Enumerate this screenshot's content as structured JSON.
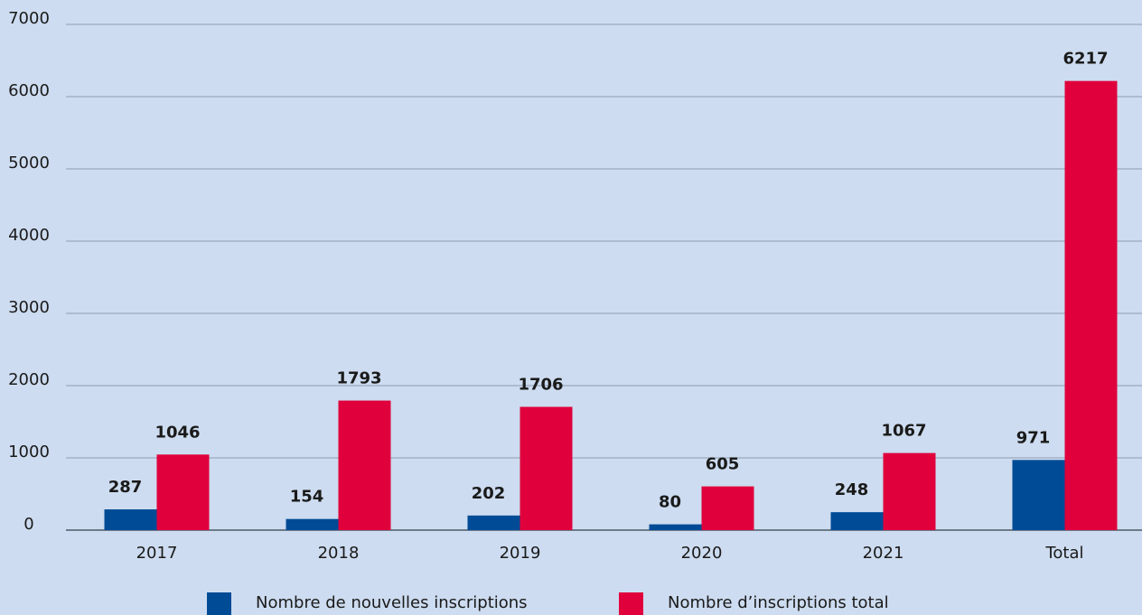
{
  "chart_data": {
    "type": "bar",
    "categories": [
      "2017",
      "2018",
      "2019",
      "2020",
      "2021",
      "Total"
    ],
    "series": [
      {
        "name": "Nombre de nouvelles inscriptions",
        "color": "#004b96",
        "values": [
          287,
          154,
          202,
          80,
          248,
          971
        ]
      },
      {
        "name": "Nombre d’inscriptions total",
        "color": "#e0003c",
        "values": [
          1046,
          1793,
          1706,
          605,
          1067,
          6217
        ]
      }
    ],
    "ylim": [
      0,
      7000
    ],
    "yticks": [
      0,
      1000,
      2000,
      3000,
      4000,
      5000,
      6000,
      7000
    ],
    "grid": true
  }
}
